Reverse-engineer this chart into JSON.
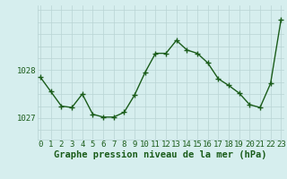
{
  "x": [
    0,
    1,
    2,
    3,
    4,
    5,
    6,
    7,
    8,
    9,
    10,
    11,
    12,
    13,
    14,
    15,
    16,
    17,
    18,
    19,
    20,
    21,
    22,
    23
  ],
  "y": [
    1027.85,
    1027.55,
    1027.25,
    1027.22,
    1027.5,
    1027.08,
    1027.02,
    1027.02,
    1027.12,
    1027.48,
    1027.95,
    1028.35,
    1028.35,
    1028.62,
    1028.42,
    1028.35,
    1028.15,
    1027.82,
    1027.68,
    1027.52,
    1027.28,
    1027.22,
    1027.72,
    1029.05
  ],
  "line_color": "#1a5c1a",
  "marker": "+",
  "marker_size": 4,
  "marker_lw": 1.0,
  "bg_color": "#d6eeee",
  "grid_color": "#b8d4d4",
  "xlabel": "Graphe pression niveau de la mer (hPa)",
  "xlabel_fontsize": 7.5,
  "ytick_labels": [
    "1027",
    "1028"
  ],
  "ytick_values": [
    1027,
    1028
  ],
  "ylim": [
    1026.55,
    1029.35
  ],
  "xlim": [
    -0.3,
    23.3
  ],
  "tick_color": "#1a5c1a",
  "tick_fontsize": 6.5,
  "linewidth": 1.0
}
